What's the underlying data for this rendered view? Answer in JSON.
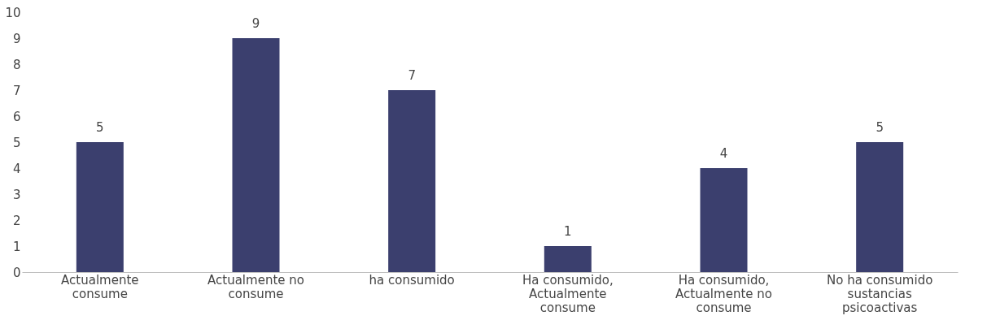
{
  "chart_data": {
    "type": "bar",
    "categories": [
      "Actualmente consume",
      "Actualmente no consume",
      "ha consumido",
      "Ha consumido, Actualmente consume",
      "Ha consumido, Actualmente no consume",
      "No ha consumido sustancias psicoactivas"
    ],
    "values": [
      5,
      9,
      7,
      1,
      4,
      5
    ],
    "color": "#3b3f6e",
    "ylim": [
      0,
      10
    ],
    "yticks": [
      0,
      1,
      2,
      3,
      4,
      5,
      6,
      7,
      8,
      9,
      10
    ],
    "grid": false,
    "data_labels": true
  }
}
